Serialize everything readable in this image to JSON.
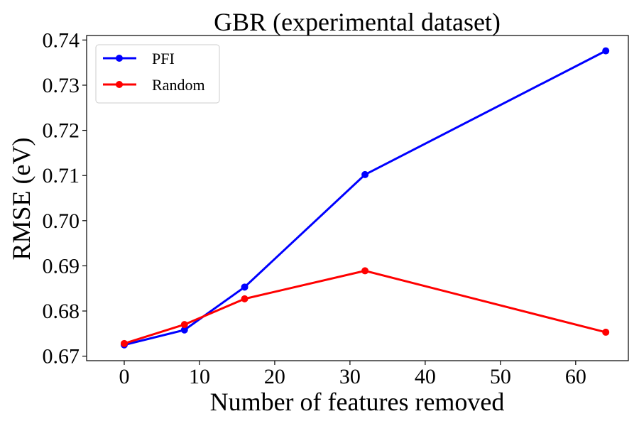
{
  "chart_data": {
    "type": "line",
    "title": "GBR (experimental dataset)",
    "xlabel": "Number of features removed",
    "ylabel": "RMSE (eV)",
    "xlim": [
      -5,
      67
    ],
    "ylim": [
      0.669,
      0.741
    ],
    "xticks": [
      0,
      10,
      20,
      30,
      40,
      50,
      60
    ],
    "xtick_labels": [
      "0",
      "10",
      "20",
      "30",
      "40",
      "50",
      "60"
    ],
    "yticks": [
      0.67,
      0.68,
      0.69,
      0.7,
      0.71,
      0.72,
      0.73,
      0.74
    ],
    "ytick_labels": [
      "0.67",
      "0.68",
      "0.69",
      "0.70",
      "0.71",
      "0.72",
      "0.73",
      "0.74"
    ],
    "grid": false,
    "legend_position": "top-left",
    "x": [
      0,
      8,
      16,
      32,
      64
    ],
    "series": [
      {
        "name": "PFI",
        "color": "#0000ff",
        "values": [
          0.6725,
          0.6758,
          0.6853,
          0.7102,
          0.7376
        ]
      },
      {
        "name": "Random",
        "color": "#ff0000",
        "values": [
          0.6728,
          0.677,
          0.6827,
          0.6889,
          0.6753
        ]
      }
    ]
  }
}
